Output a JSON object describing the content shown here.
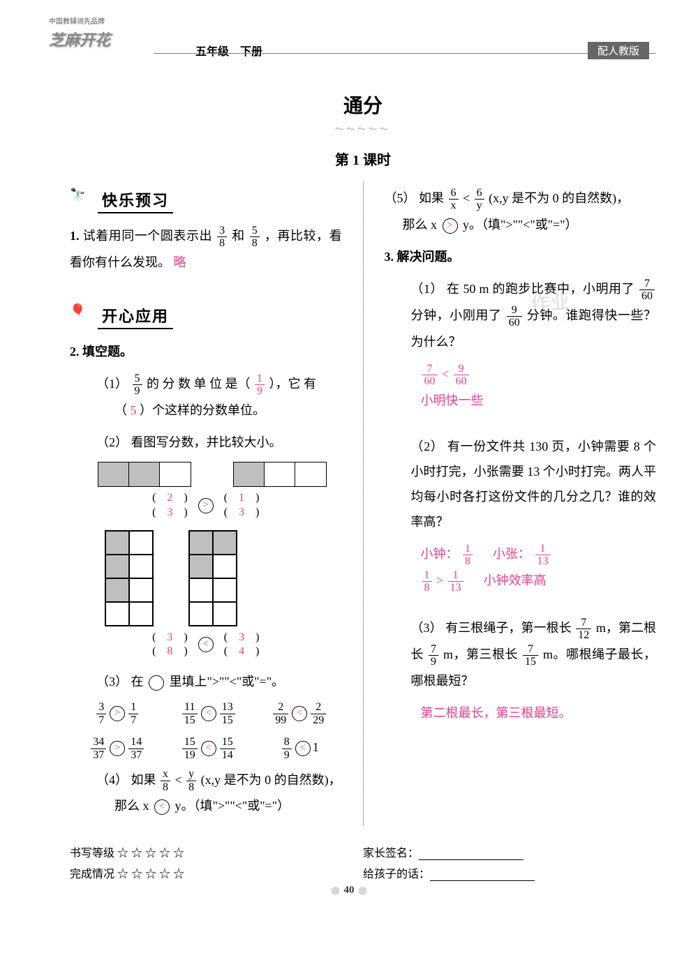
{
  "header": {
    "brand_sub": "中国教辅领先品牌",
    "brand": "芝麻开花",
    "grade": "五年级　下册",
    "edition": "配人教版"
  },
  "title": "通分",
  "lesson": "第 1 课时",
  "section1": {
    "icon": "telescope",
    "title": "快乐预习"
  },
  "section2": {
    "icon": "balloon",
    "title": "开心应用"
  },
  "q1": {
    "num": "1.",
    "text_a": "试着用同一个圆表示出",
    "f1n": "3",
    "f1d": "8",
    "and": "和",
    "f2n": "5",
    "f2d": "8",
    "text_b": "，再比较，看看你有什么发现。",
    "ans": "略"
  },
  "q2": {
    "num": "2.",
    "title": "填空题。",
    "p1": {
      "num": "（1）",
      "t1": "的 分 数 单 位 是（",
      "f_n": "5",
      "f_d": "9",
      "a1n": "1",
      "a1d": "9",
      "t2": "），它 有",
      "t3": "（",
      "a2": "5",
      "t4": "）个这样的分数单位。"
    },
    "p2": {
      "num": "（2）",
      "title": "看图写分数，并比较大小。",
      "cmpA": {
        "a_n": "2",
        "a_d": "3",
        "op": ">",
        "b_n": "1",
        "b_d": "3"
      },
      "cmpB": {
        "a_n": "3",
        "a_d": "8",
        "op": "<",
        "b_n": "3",
        "b_d": "4"
      }
    },
    "p3": {
      "num": "（3）",
      "title": "在",
      "title2": "里填上\">\"\"<\"或\"=\"。",
      "items": [
        {
          "an": "3",
          "ad": "7",
          "op": ">",
          "bn": "1",
          "bd": "7"
        },
        {
          "an": "11",
          "ad": "15",
          "op": "<",
          "bn": "13",
          "bd": "15"
        },
        {
          "an": "2",
          "ad": "99",
          "op": "<",
          "bn": "2",
          "bd": "29"
        },
        {
          "an": "34",
          "ad": "37",
          "op": ">",
          "bn": "14",
          "bd": "37"
        },
        {
          "an": "15",
          "ad": "19",
          "op": "<",
          "bn": "15",
          "bd": "14"
        },
        {
          "an": "8",
          "ad": "9",
          "op": "<",
          "bn": "1",
          "bd": ""
        }
      ]
    },
    "p4": {
      "num": "（4）",
      "t1": "如果",
      "f1n": "x",
      "f1d": "8",
      "lt": "<",
      "f2n": "y",
      "f2d": "8",
      "t2": "(x,y 是不为 0 的自然数)，",
      "t3": "那么 x",
      "op": "<",
      "t4": "y。（填\">\"\"<\"或\"=\"）"
    },
    "p5": {
      "num": "（5）",
      "t1": "如果",
      "f1n": "6",
      "f1d": "x",
      "lt": "<",
      "f2n": "6",
      "f2d": "y",
      "t2": "(x,y 是不为 0 的自然数)，",
      "t3": "那么 x",
      "op": ">",
      "t4": "y。（填\">\"\"<\"或\"=\"）"
    }
  },
  "q3": {
    "num": "3.",
    "title": "解决问题。",
    "p1": {
      "num": "（1）",
      "t1": "在 50 m 的跑步比赛中，小明用了",
      "f1n": "7",
      "f1d": "60",
      "t2": "分钟，小刚用了",
      "f2n": "9",
      "f2d": "60",
      "t3": "分钟。谁跑得快一些？为什么？",
      "ans_cmp_a_n": "7",
      "ans_cmp_a_d": "60",
      "ans_op": "<",
      "ans_cmp_b_n": "9",
      "ans_cmp_b_d": "60",
      "ans_text": "小明快一些"
    },
    "p2": {
      "num": "（2）",
      "t1": "有一份文件共 130 页，小钟需要 8 个小时打完，小张需要 13 个小时打完。两人平均每小时各打这份文件的几分之几？谁的效率高？",
      "a1_label": "小钟：",
      "a1n": "1",
      "a1d": "8",
      "a2_label": "小张：",
      "a2n": "1",
      "a2d": "13",
      "cmp_an": "1",
      "cmp_ad": "8",
      "cmp_op": ">",
      "cmp_bn": "1",
      "cmp_bd": "13",
      "ans_text": "小钟效率高"
    },
    "p3": {
      "num": "（3）",
      "t1": "有三根绳子，第一根长",
      "f1n": "7",
      "f1d": "12",
      "t2": " m，第二根长",
      "f2n": "7",
      "f2d": "9",
      "t3": " m，第三根长",
      "f3n": "7",
      "f3d": "15",
      "t4": " m。哪根绳子最长，哪根最短？",
      "ans": "第二根最长，第三根最短。"
    }
  },
  "footer": {
    "rate_label": "书写等级",
    "done_label": "完成情况",
    "stars": "☆ ☆ ☆ ☆ ☆",
    "sign_label": "家长签名：",
    "msg_label": "给孩子的话："
  },
  "page_num": "40",
  "colors": {
    "answer": "#e83e8c",
    "text": "#000000",
    "grey": "#888888"
  }
}
